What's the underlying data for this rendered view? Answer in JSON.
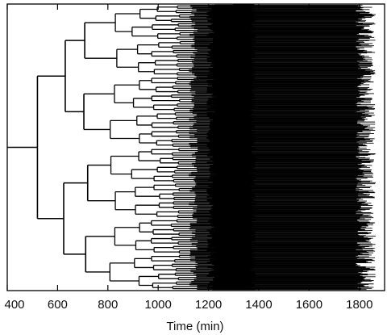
{
  "chart_data": {
    "type": "dendrogram",
    "title": "",
    "xlabel": "Time (min)",
    "ylabel": "",
    "xlim": [
      400,
      1900
    ],
    "x_ticks": [
      400,
      600,
      800,
      1000,
      1200,
      1400,
      1600,
      1800
    ],
    "tick_labels": [
      "400",
      "600",
      "800",
      "1000",
      "1200",
      "1400",
      "1600",
      "1800"
    ],
    "grid": false,
    "legend": "none",
    "root_time": 400,
    "first_split_time": 520,
    "level_split_times": [
      520,
      625,
      715,
      825,
      910,
      990,
      1070,
      1140,
      1210,
      1290,
      1370
    ],
    "lineage_count": 512,
    "leaf_end_time_min": 1785,
    "leaf_end_time_max": 1865,
    "line_color": "#000000"
  }
}
